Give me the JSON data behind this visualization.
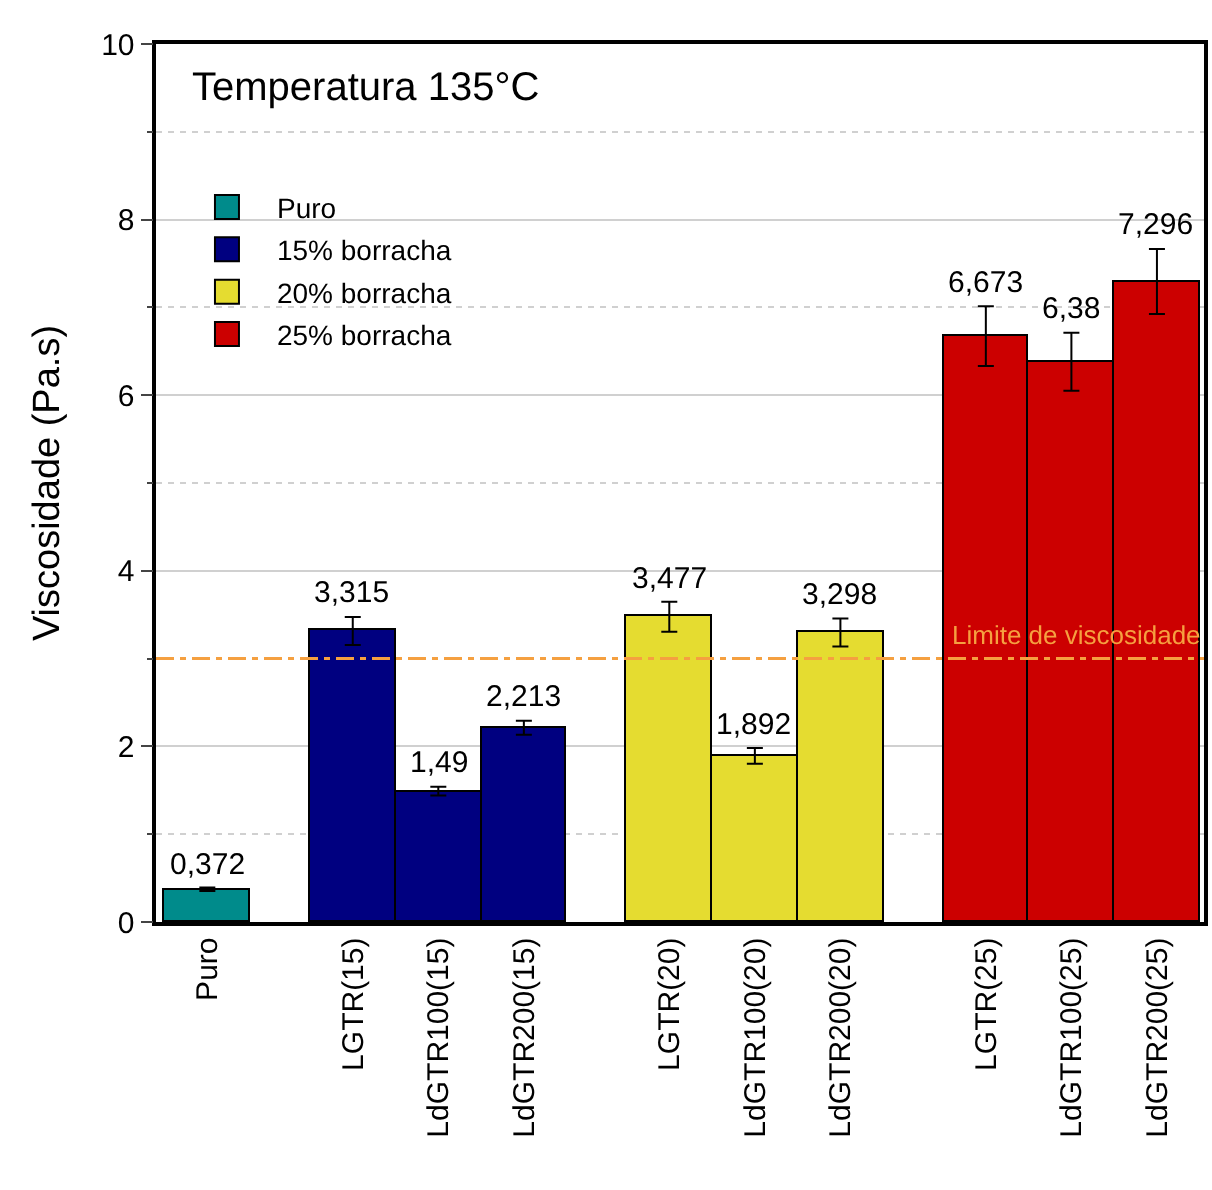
{
  "chart_data": {
    "type": "bar",
    "title": "Temperatura 135°C",
    "ylabel": "Viscosidade (Pa.s)",
    "categories": [
      "Puro",
      "LGTR(15)",
      "LdGTR100(15)",
      "LdGTR200(15)",
      "LGTR(20)",
      "LdGTR100(20)",
      "LdGTR200(20)",
      "LGTR(25)",
      "LdGTR100(25)",
      "LdGTR200(25)"
    ],
    "series": [
      {
        "name": "Puro",
        "color": "#008b8b",
        "values": [
          0.372,
          null,
          null,
          null,
          null,
          null,
          null,
          null,
          null,
          null
        ],
        "errors": [
          0.02,
          null,
          null,
          null,
          null,
          null,
          null,
          null,
          null,
          null
        ],
        "value_labels": [
          "0,372",
          null,
          null,
          null,
          null,
          null,
          null,
          null,
          null,
          null
        ]
      },
      {
        "name": "15% borracha",
        "color": "#000080",
        "values": [
          null,
          3.315,
          1.49,
          2.213,
          null,
          null,
          null,
          null,
          null,
          null
        ],
        "errors": [
          null,
          0.16,
          0.05,
          0.08,
          null,
          null,
          null,
          null,
          null,
          null
        ],
        "value_labels": [
          null,
          "3,315",
          "1,49",
          "2,213",
          null,
          null,
          null,
          null,
          null,
          null
        ]
      },
      {
        "name": "20% borracha",
        "color": "#e5dc30",
        "values": [
          null,
          null,
          null,
          null,
          3.477,
          1.892,
          3.298,
          null,
          null,
          null
        ],
        "errors": [
          null,
          null,
          null,
          null,
          0.17,
          0.09,
          0.16,
          null,
          null,
          null
        ],
        "value_labels": [
          null,
          null,
          null,
          null,
          "3,477",
          "1,892",
          "3,298",
          null,
          null,
          null
        ]
      },
      {
        "name": "25% borracha",
        "color": "#cc0000",
        "values": [
          null,
          null,
          null,
          null,
          null,
          null,
          null,
          6.673,
          6.38,
          7.296
        ],
        "errors": [
          null,
          null,
          null,
          null,
          null,
          null,
          null,
          0.34,
          0.33,
          0.37
        ],
        "value_labels": [
          null,
          null,
          null,
          null,
          null,
          null,
          null,
          "6,673",
          "6,38",
          "7,296"
        ]
      }
    ],
    "ylim": [
      0,
      10
    ],
    "yticks": [
      0,
      2,
      4,
      6,
      8,
      10
    ],
    "grid": "y",
    "legend": "top left",
    "ref_lines": [
      {
        "axis": "y",
        "value": 3,
        "label": "Limite de viscosidade",
        "color": "#f5a040",
        "line_style": "dashdot"
      }
    ]
  }
}
